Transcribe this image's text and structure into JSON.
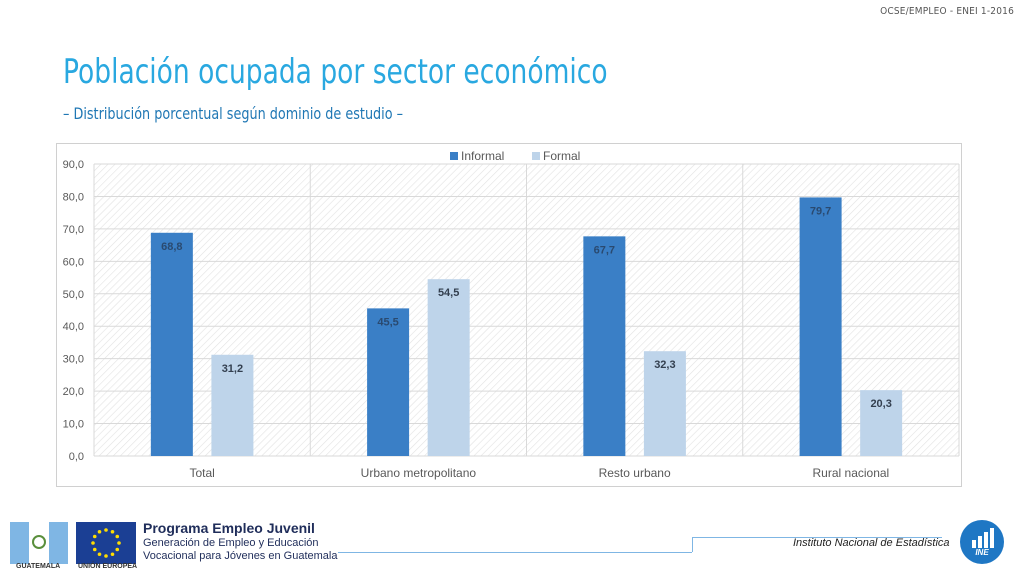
{
  "header": {
    "reference": "OCSE/EMPLEO -  ENEI 1-2016"
  },
  "title": "Población ocupada por sector económico",
  "subtitle": "– Distribución porcentual según dominio de estudio –",
  "chart_data": {
    "type": "bar",
    "categories": [
      "Total",
      "Urbano metropolitano",
      "Resto urbano",
      "Rural nacional"
    ],
    "series": [
      {
        "name": "Informal",
        "values": [
          68.8,
          45.5,
          67.7,
          79.7
        ],
        "labels": [
          "68,8",
          "45,5",
          "67,7",
          "79,7"
        ],
        "color": "#3a7fc6"
      },
      {
        "name": "Formal",
        "values": [
          31.2,
          54.5,
          32.3,
          20.3
        ],
        "labels": [
          "31,2",
          "54,5",
          "32,3",
          "20,3"
        ],
        "color": "#bed4ea"
      }
    ],
    "ylim": [
      0,
      90
    ],
    "yticks": [
      0,
      10,
      20,
      30,
      40,
      50,
      60,
      70,
      80,
      90
    ],
    "ytick_labels": [
      "0,0",
      "10,0",
      "20,0",
      "30,0",
      "40,0",
      "50,0",
      "60,0",
      "70,0",
      "80,0",
      "90,0"
    ],
    "legend_position": "top-center",
    "grid": true,
    "title": "",
    "xlabel": "",
    "ylabel": ""
  },
  "footer": {
    "flag_gt_label": "GUATEMALA",
    "flag_eu_label": "UNIÓN EUROPEA",
    "program_title": "Programa Empleo Juvenil",
    "program_line1": "Generación de Empleo y Educación",
    "program_line2": "Vocacional para Jóvenes en Guatemala",
    "institute": "Instituto Nacional de Estadística",
    "ine_logo_text": "INE"
  },
  "colors": {
    "title": "#29a8e0",
    "informal": "#3a7fc6",
    "formal": "#bed4ea"
  }
}
